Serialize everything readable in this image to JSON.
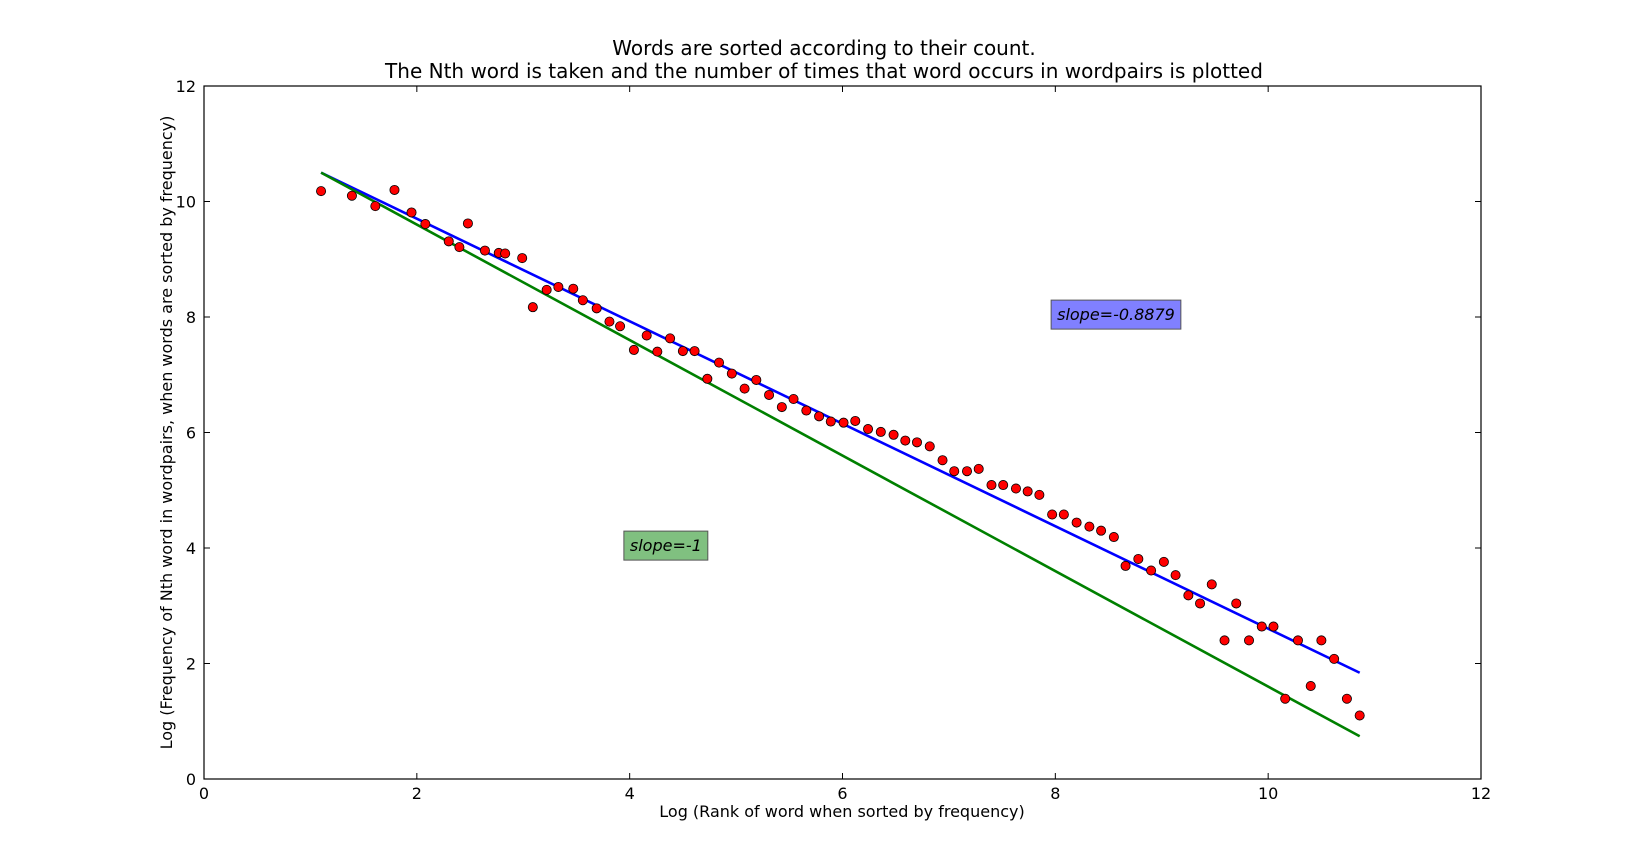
{
  "chart_data": {
    "type": "scatter",
    "title": [
      "Words are sorted according to their count.",
      "The Nth word is taken and the number of times that word occurs in wordpairs is plotted"
    ],
    "xlabel": "Log (Rank of word when sorted by frequency)",
    "ylabel": "Log (Frequency of Nth word in wordpairs, when words are sorted by frequency)",
    "xlim": [
      0,
      12
    ],
    "ylim": [
      0,
      12
    ],
    "xticks": [
      0,
      2,
      4,
      6,
      8,
      10,
      12
    ],
    "yticks": [
      0,
      2,
      4,
      6,
      8,
      10,
      12
    ],
    "grid": false,
    "points": {
      "color": "#ff0000",
      "x": [
        1.1,
        1.39,
        1.61,
        1.79,
        1.95,
        2.08,
        2.3,
        2.4,
        2.48,
        2.64,
        2.77,
        2.83,
        2.99,
        3.09,
        3.22,
        3.33,
        3.47,
        3.56,
        3.69,
        3.81,
        3.91,
        4.04,
        4.16,
        4.26,
        4.38,
        4.5,
        4.61,
        4.73,
        4.84,
        4.96,
        5.08,
        5.19,
        5.31,
        5.43,
        5.54,
        5.66,
        5.78,
        5.89,
        6.01,
        6.12,
        6.24,
        6.36,
        6.48,
        6.59,
        6.7,
        6.82,
        6.94,
        7.05,
        7.17,
        7.28,
        7.4,
        7.51,
        7.63,
        7.74,
        7.85,
        7.97,
        8.08,
        8.2,
        8.32,
        8.43,
        8.55,
        8.66,
        8.78,
        8.9,
        9.02,
        9.13,
        9.25,
        9.36,
        9.47,
        9.59,
        9.7,
        9.82,
        9.94,
        10.05,
        10.16,
        10.28,
        10.4,
        10.5,
        10.62,
        10.74,
        10.86
      ],
      "y": [
        10.18,
        10.1,
        9.92,
        10.2,
        9.81,
        9.61,
        9.31,
        9.21,
        9.62,
        9.15,
        9.11,
        9.1,
        9.02,
        8.17,
        8.47,
        8.52,
        8.49,
        8.29,
        8.15,
        7.92,
        7.84,
        7.43,
        7.68,
        7.4,
        7.63,
        7.41,
        7.41,
        6.93,
        7.21,
        7.02,
        6.76,
        6.91,
        6.65,
        6.44,
        6.58,
        6.38,
        6.28,
        6.19,
        6.17,
        6.2,
        6.06,
        6.01,
        5.96,
        5.86,
        5.83,
        5.76,
        5.52,
        5.33,
        5.33,
        5.37,
        5.09,
        5.09,
        5.03,
        4.98,
        4.92,
        4.58,
        4.58,
        4.44,
        4.37,
        4.3,
        4.19,
        3.69,
        3.81,
        3.61,
        3.76,
        3.53,
        3.18,
        3.04,
        3.37,
        2.4,
        3.04,
        2.4,
        2.64,
        2.64,
        1.39,
        2.4,
        1.61,
        2.4,
        2.08,
        1.39,
        1.1
      ]
    },
    "lines": [
      {
        "color": "#0000ff",
        "x": [
          1.1,
          10.86
        ],
        "y": [
          10.5,
          1.84
        ]
      },
      {
        "color": "#008000",
        "x": [
          1.1,
          10.86
        ],
        "y": [
          10.5,
          0.74
        ]
      }
    ],
    "annotations": [
      {
        "text": "slope=-0.8879",
        "x": 8.57,
        "y": 8.05,
        "facecolor": "#8080ff"
      },
      {
        "text": "slope=-1",
        "x": 4.34,
        "y": 4.05,
        "facecolor": "#80c080"
      }
    ]
  }
}
